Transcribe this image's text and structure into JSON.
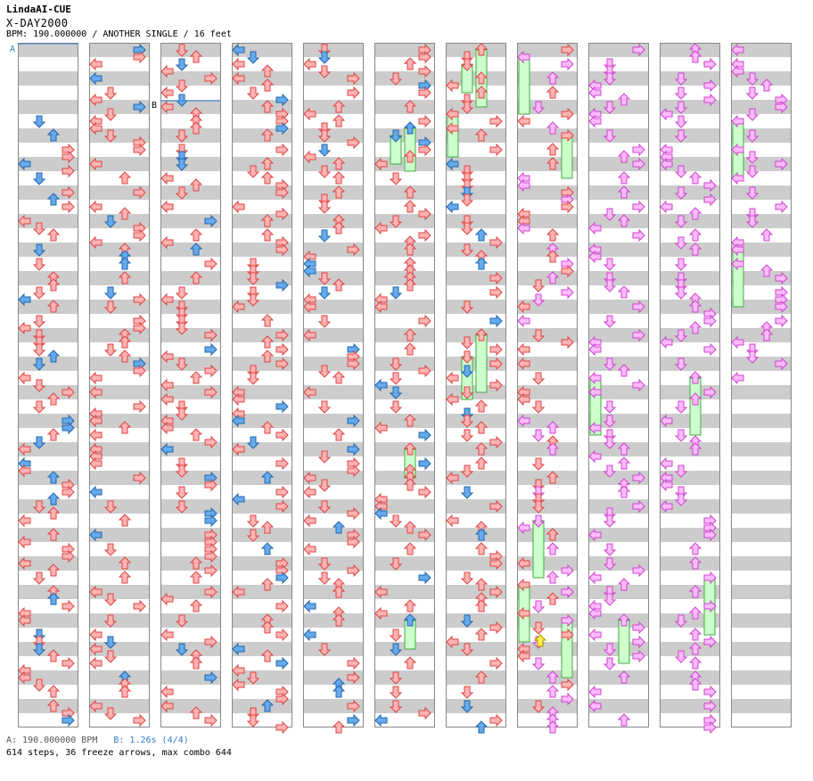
{
  "header": {
    "artist_line": "LindaAI-CUE",
    "song_title": "X-DAY2000",
    "bpm_line": "BPM: 190.000000 / ANOTHER SINGLE / 16 feet"
  },
  "markers": {
    "a_label": "A",
    "b_label": "B"
  },
  "footer": {
    "bpm_a": "A: 190.000000 BPM",
    "bpm_b": "B: 1.26s (4/4)",
    "summary": "614 steps, 36 freeze arrows, max combo 644"
  },
  "colors": {
    "stripe_gray": "#cccccc",
    "column_border": "#888888",
    "arrow_red_fill": "#ffb3b3",
    "arrow_red_stroke": "#dd4444",
    "arrow_blue_fill": "#66aaee",
    "arrow_blue_stroke": "#2266aa",
    "arrow_pink_fill": "#ffbbff",
    "arrow_pink_stroke": "#cc44cc",
    "freeze_fill": "#ccffcc",
    "freeze_stroke": "#44aa44",
    "shock_yellow": "#ffee44",
    "marker_blue": "#3380cc"
  },
  "chart_data": {
    "type": "step-chart",
    "columns": 11,
    "measures_per_column": 12,
    "lanes": [
      "left",
      "down",
      "up",
      "right"
    ],
    "steps": 614,
    "freeze_arrows": 36,
    "max_combo": 644
  }
}
